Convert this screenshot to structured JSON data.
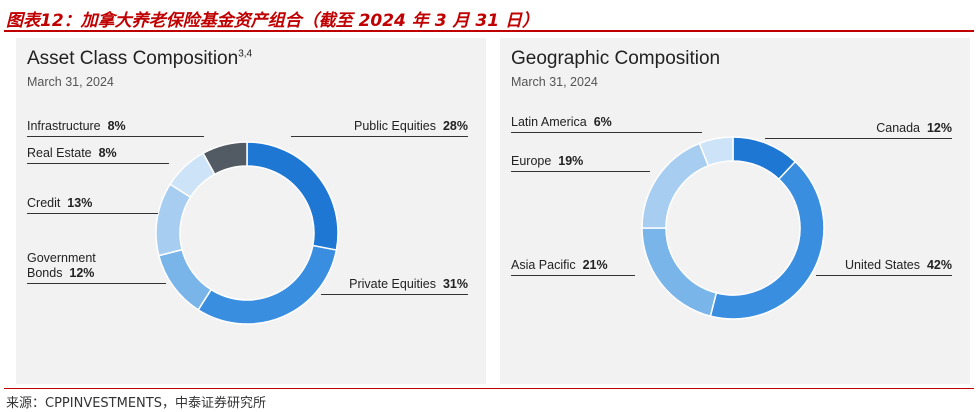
{
  "figure_title": "图表12：加拿大养老保险基金资产组合（截至 2024 年 3 月 31 日）",
  "source": "来源：CPPINVESTMENTS，中泰证券研究所",
  "colors": {
    "title_red": "#c00000",
    "panel_bg": "#f2f2f2",
    "blue_dark": "#1f77d4",
    "blue_mid": "#3a8ee0",
    "blue_light": "#7ab5ea",
    "blue_pale": "#a7cdf1",
    "blue_faint": "#cde3f7",
    "slate": "#525a63"
  },
  "chart_data": [
    {
      "type": "pie",
      "variant": "donut",
      "title": "Asset Class Composition",
      "title_superscript": "3,4",
      "subtitle": "March 31, 2024",
      "unit": "%",
      "slices": [
        {
          "name": "Public Equities",
          "value": 28,
          "color": "#1f77d4",
          "label_lines": [
            "Public Equities"
          ]
        },
        {
          "name": "Private Equities",
          "value": 31,
          "color": "#3a8ee0",
          "label_lines": [
            "Private Equities"
          ]
        },
        {
          "name": "Government Bonds",
          "value": 12,
          "color": "#7ab5ea",
          "label_lines": [
            "Government",
            "Bonds"
          ]
        },
        {
          "name": "Credit",
          "value": 13,
          "color": "#a7cdf1",
          "label_lines": [
            "Credit"
          ]
        },
        {
          "name": "Real Estate",
          "value": 8,
          "color": "#cde3f7",
          "label_lines": [
            "Real Estate"
          ]
        },
        {
          "name": "Infrastructure",
          "value": 8,
          "color": "#525a63",
          "label_lines": [
            "Infrastructure"
          ]
        }
      ]
    },
    {
      "type": "pie",
      "variant": "donut",
      "title": "Geographic Composition",
      "subtitle": "March 31, 2024",
      "unit": "%",
      "slices": [
        {
          "name": "Canada",
          "value": 12,
          "color": "#1f77d4",
          "label_lines": [
            "Canada"
          ]
        },
        {
          "name": "United States",
          "value": 42,
          "color": "#3a8ee0",
          "label_lines": [
            "United States"
          ]
        },
        {
          "name": "Asia Pacific",
          "value": 21,
          "color": "#7ab5ea",
          "label_lines": [
            "Asia Pacific"
          ]
        },
        {
          "name": "Europe",
          "value": 19,
          "color": "#a7cdf1",
          "label_lines": [
            "Europe"
          ]
        },
        {
          "name": "Latin America",
          "value": 6,
          "color": "#cde3f7",
          "label_lines": [
            "Latin America"
          ]
        }
      ]
    }
  ]
}
